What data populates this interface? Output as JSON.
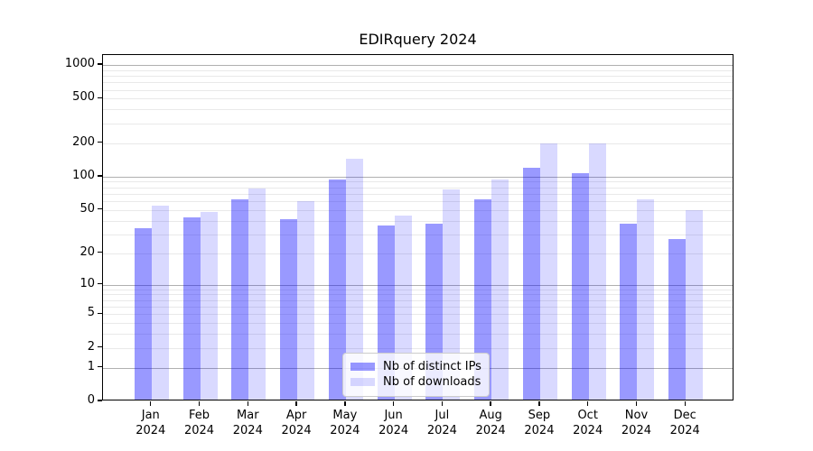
{
  "title": "EDIRquery 2024",
  "colors": {
    "bar_ips": "rgba(0,0,255,0.4)",
    "bar_downloads": "rgba(0,0,255,0.15)",
    "grid_major": "#b0b0b0",
    "grid_minor": "#e9e9e9",
    "spine": "#000000",
    "legend_border": "#cccccc",
    "legend_bg": "rgba(255,255,255,0.8)"
  },
  "legend": {
    "items": [
      {
        "label": "Nb of distinct IPs",
        "color_key": "bar_ips"
      },
      {
        "label": "Nb of downloads",
        "color_key": "bar_downloads"
      }
    ]
  },
  "chart_data": {
    "type": "bar",
    "title": "EDIRquery 2024",
    "categories": [
      "Jan",
      "Feb",
      "Mar",
      "Apr",
      "May",
      "Jun",
      "Jul",
      "Aug",
      "Sep",
      "Oct",
      "Nov",
      "Dec"
    ],
    "category_second_line": "2024",
    "series": [
      {
        "name": "Nb of distinct IPs",
        "values": [
          33,
          41,
          60,
          40,
          90,
          35,
          36,
          60,
          115,
          103,
          36,
          26
        ]
      },
      {
        "name": "Nb of downloads",
        "values": [
          53,
          46,
          75,
          58,
          140,
          43,
          74,
          91,
          190,
          193,
          60,
          48
        ]
      }
    ],
    "xlabel": "",
    "ylabel": "",
    "yscale": "log1p",
    "ylim": [
      0,
      1228
    ],
    "xlim": [
      -1,
      12
    ],
    "yticks": [
      0,
      1,
      2,
      5,
      10,
      20,
      50,
      100,
      200,
      500,
      1000
    ],
    "grid_major_values": [
      1,
      10,
      100,
      1000
    ],
    "grid_minor_values": [
      2,
      3,
      4,
      5,
      6,
      7,
      8,
      9,
      20,
      30,
      40,
      50,
      60,
      70,
      80,
      90,
      200,
      300,
      400,
      500,
      600,
      700,
      800,
      900
    ],
    "grid": "on",
    "legend_position": "lower center"
  }
}
